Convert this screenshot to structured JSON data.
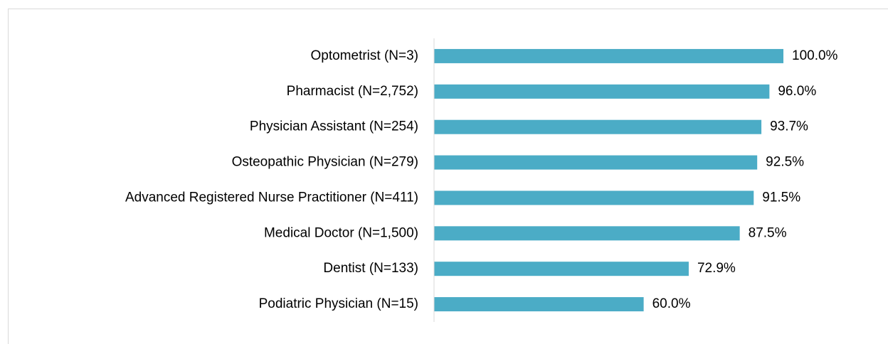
{
  "chart_data": {
    "type": "bar",
    "orientation": "horizontal",
    "categories": [
      "Optometrist (N=3)",
      "Pharmacist (N=2,752)",
      "Physician Assistant (N=254)",
      "Osteopathic Physician (N=279)",
      "Advanced Registered Nurse Practitioner (N=411)",
      "Medical Doctor (N=1,500)",
      "Dentist (N=133)",
      "Podiatric Physician (N=15)"
    ],
    "values": [
      100,
      96,
      93.7,
      92.5,
      91.5,
      87.5,
      72.9,
      60
    ],
    "value_labels": [
      "100.0%",
      "96.0%",
      "93.7%",
      "92.5%",
      "91.5%",
      "87.5%",
      "72.9%",
      "60.0%"
    ],
    "color": "#4bacc6",
    "xlim": [
      0,
      100
    ]
  }
}
